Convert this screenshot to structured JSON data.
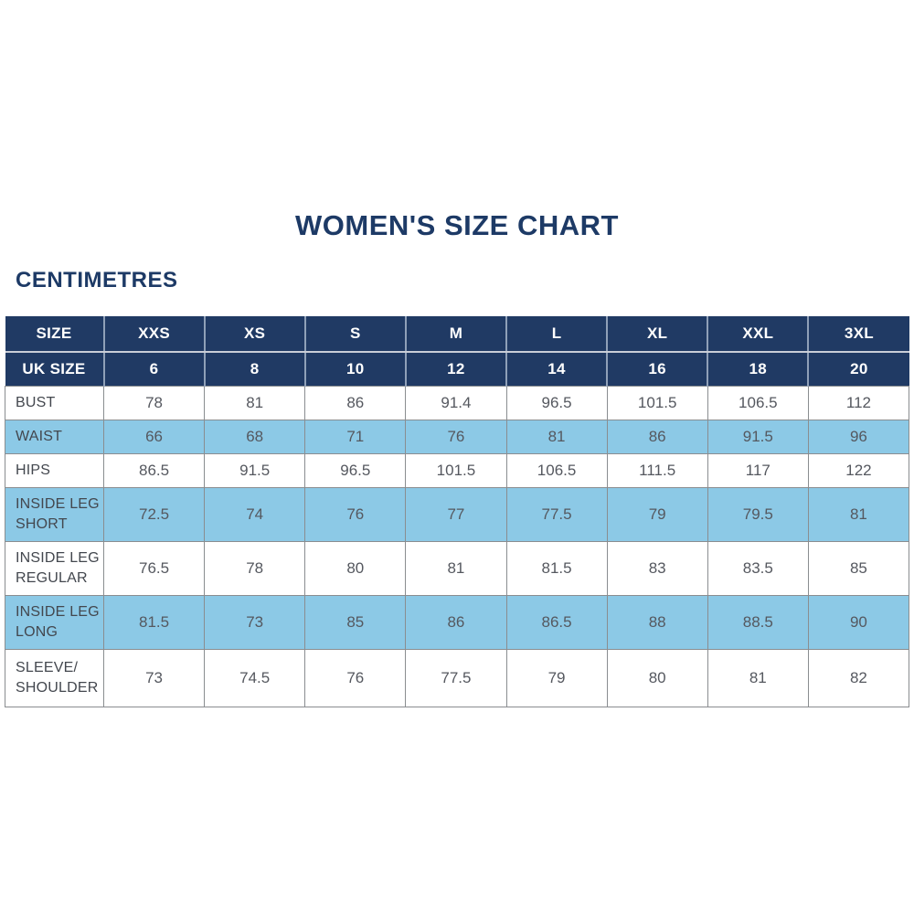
{
  "title": "WOMEN'S SIZE CHART",
  "units_label": "CENTIMETRES",
  "colors": {
    "navy_header": "#203a64",
    "light_blue_row": "#8cc9e6",
    "grid_line": "#8a8d90",
    "title_text": "#1d3a66",
    "value_text": "#55585f"
  },
  "table": {
    "header_rows": [
      {
        "name": "size-header-row",
        "label": "SIZE",
        "values": [
          "XXS",
          "XS",
          "S",
          "M",
          "L",
          "XL",
          "XXL",
          "3XL"
        ]
      },
      {
        "name": "uk-size-header-row",
        "label": "UK SIZE",
        "values": [
          "6",
          "8",
          "10",
          "12",
          "14",
          "16",
          "18",
          "20"
        ]
      }
    ],
    "rows": [
      {
        "label": "BUST",
        "shaded": false,
        "values": [
          "78",
          "81",
          "86",
          "91.4",
          "96.5",
          "101.5",
          "106.5",
          "112"
        ]
      },
      {
        "label": "WAIST",
        "shaded": true,
        "values": [
          "66",
          "68",
          "71",
          "76",
          "81",
          "86",
          "91.5",
          "96"
        ]
      },
      {
        "label": "HIPS",
        "shaded": false,
        "values": [
          "86.5",
          "91.5",
          "96.5",
          "101.5",
          "106.5",
          "111.5",
          "117",
          "122"
        ]
      },
      {
        "label": "INSIDE LEG\nSHORT",
        "shaded": true,
        "values": [
          "72.5",
          "74",
          "76",
          "77",
          "77.5",
          "79",
          "79.5",
          "81"
        ]
      },
      {
        "label": "INSIDE LEG\nREGULAR",
        "shaded": false,
        "values": [
          "76.5",
          "78",
          "80",
          "81",
          "81.5",
          "83",
          "83.5",
          "85"
        ]
      },
      {
        "label": "INSIDE LEG\nLONG",
        "shaded": true,
        "values": [
          "81.5",
          "73",
          "85",
          "86",
          "86.5",
          "88",
          "88.5",
          "90"
        ]
      },
      {
        "label": "SLEEVE/\nSHOULDER",
        "shaded": false,
        "values": [
          "73",
          "74.5",
          "76",
          "77.5",
          "79",
          "80",
          "81",
          "82"
        ]
      }
    ]
  },
  "chart_data": {
    "type": "table",
    "title": "WOMEN'S SIZE CHART",
    "units": "CENTIMETRES",
    "columns": [
      "SIZE",
      "XXS",
      "XS",
      "S",
      "M",
      "L",
      "XL",
      "XXL",
      "3XL"
    ],
    "uk_size_row": {
      "label": "UK SIZE",
      "values": [
        6,
        8,
        10,
        12,
        14,
        16,
        18,
        20
      ]
    },
    "rows": [
      {
        "measurement": "BUST",
        "values": [
          78,
          81,
          86,
          91.4,
          96.5,
          101.5,
          106.5,
          112
        ]
      },
      {
        "measurement": "WAIST",
        "values": [
          66,
          68,
          71,
          76,
          81,
          86,
          91.5,
          96
        ]
      },
      {
        "measurement": "HIPS",
        "values": [
          86.5,
          91.5,
          96.5,
          101.5,
          106.5,
          111.5,
          117,
          122
        ]
      },
      {
        "measurement": "INSIDE LEG SHORT",
        "values": [
          72.5,
          74,
          76,
          77,
          77.5,
          79,
          79.5,
          81
        ]
      },
      {
        "measurement": "INSIDE LEG REGULAR",
        "values": [
          76.5,
          78,
          80,
          81,
          81.5,
          83,
          83.5,
          85
        ]
      },
      {
        "measurement": "INSIDE LEG LONG",
        "values": [
          81.5,
          73,
          85,
          86,
          86.5,
          88,
          88.5,
          90
        ]
      },
      {
        "measurement": "SLEEVE/SHOULDER",
        "values": [
          73,
          74.5,
          76,
          77.5,
          79,
          80,
          81,
          82
        ]
      }
    ]
  }
}
